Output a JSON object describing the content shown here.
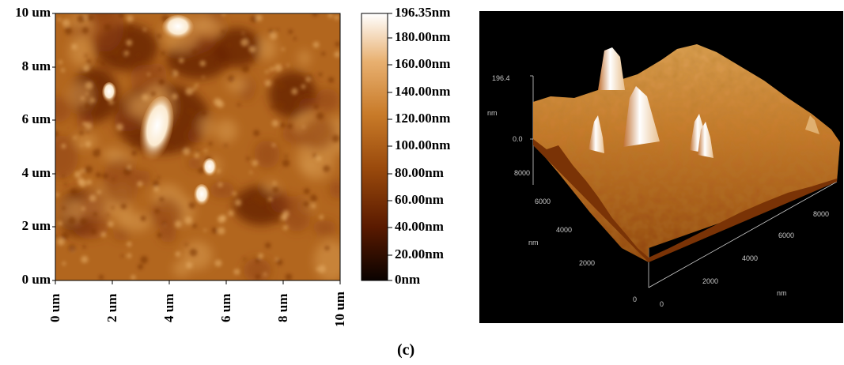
{
  "left_map": {
    "y_ticks": [
      "10 um",
      "8 um",
      "6 um",
      "4 um",
      "2 um",
      "0 um"
    ],
    "x_ticks": [
      "0 um",
      "2 um",
      "4 um",
      "6 um",
      "8 um",
      "10 um"
    ],
    "colorbar_labels": [
      "196.35nm",
      "180.00nm",
      "160.00nm",
      "140.00nm",
      "120.00nm",
      "100.00nm",
      "80.00nm",
      "60.00nm",
      "40.00nm",
      "20.00nm",
      "0nm"
    ],
    "colormap": [
      "#0a0200",
      "#5a1a00",
      "#9a4a0c",
      "#c87a28",
      "#e8b070",
      "#ffffff"
    ]
  },
  "surface_3d": {
    "z_max": "196.4",
    "z_min": "0.0",
    "z_unit": "nm",
    "y_ticks": [
      "8000",
      "6000",
      "4000",
      "2000",
      "0"
    ],
    "y_unit": "nm",
    "x_ticks": [
      "0",
      "2000",
      "4000",
      "6000",
      "8000"
    ],
    "x_unit": "nm"
  },
  "caption": "(c)"
}
